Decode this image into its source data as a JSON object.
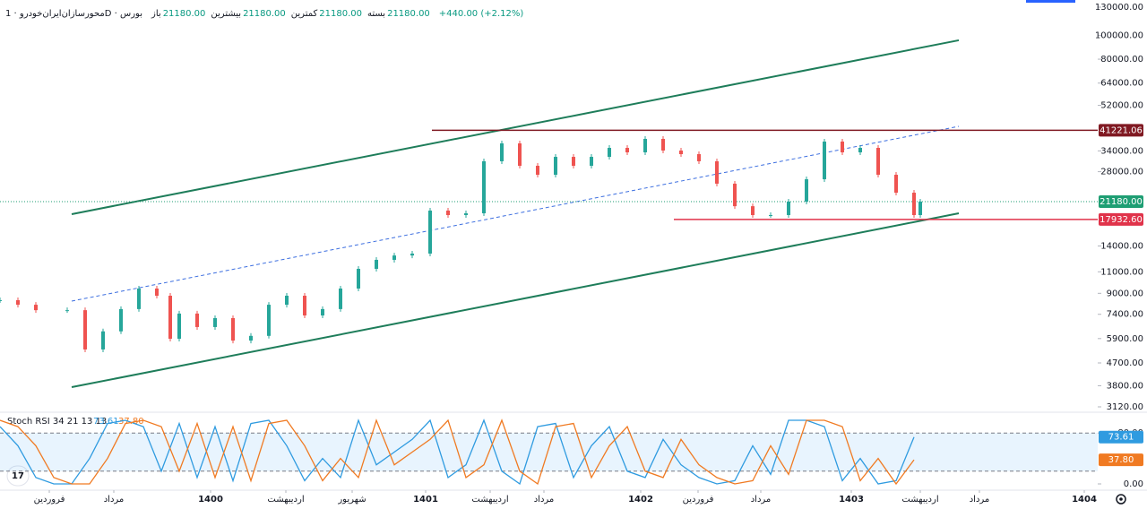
{
  "chart_data": [
    {
      "type": "candlestick",
      "title": "محورسازان‌ایران‌خودرو · 1D · بورس",
      "ohlc": [
        {
          "label": "باز",
          "text": "21180.00"
        },
        {
          "label": "بیشترین",
          "text": "21180.00"
        },
        {
          "label": "کمترین",
          "text": "21180.00"
        },
        {
          "label": "بسته",
          "text": "21180.00"
        }
      ],
      "change": "+440.00 (+2.12%)",
      "log_scale": true,
      "xlim": [
        -2.75,
        58.5
      ],
      "ylim": [
        3120,
        130000
      ],
      "yticks": [
        {
          "value": 130000,
          "label": "130000.00"
        },
        {
          "value": 100000,
          "label": "100000.00"
        },
        {
          "value": 80000,
          "label": "80000.00"
        },
        {
          "value": 64000,
          "label": "64000.00"
        },
        {
          "value": 52000,
          "label": "52000.00"
        },
        {
          "value": 34000,
          "label": "34000.00"
        },
        {
          "value": 28000,
          "label": "28000.00"
        },
        {
          "value": 14000,
          "label": "14000.00"
        },
        {
          "value": 11000,
          "label": "11000.00"
        },
        {
          "value": 9000,
          "label": "9000.00"
        },
        {
          "value": 7400,
          "label": "7400.00"
        },
        {
          "value": 5900,
          "label": "5900.00"
        },
        {
          "value": 4700,
          "label": "4700.00"
        },
        {
          "value": 3800,
          "label": "3800.00"
        },
        {
          "value": 3120,
          "label": "3120.00"
        }
      ],
      "up_color": "#26a69a",
      "down_color": "#ef5350",
      "x": [
        -2.75,
        -1.75,
        -0.75,
        1,
        2,
        3,
        4,
        5,
        6,
        6.75,
        7.25,
        8.25,
        9.25,
        10.25,
        11.25,
        12.25,
        13.25,
        14.25,
        15.25,
        16.25,
        17.25,
        18.25,
        19.25,
        20.25,
        21.25,
        22.25,
        23.25,
        24.25,
        25.25,
        26.25,
        27.25,
        28.25,
        29.25,
        30.25,
        31.25,
        32.25,
        33.25,
        34.25,
        35.25,
        36.25,
        37.25,
        38.25,
        39.25,
        40.25,
        41.25,
        42.25,
        43.25,
        44.25,
        45.25,
        46.25,
        47.25,
        48.25,
        48.6
      ],
      "values": [
        8440,
        8090,
        7690,
        7690,
        5330,
        6310,
        7770,
        9410,
        8800,
        5890,
        7450,
        6570,
        7140,
        5790,
        6050,
        8090,
        8800,
        7320,
        7770,
        9410,
        11310,
        12300,
        12810,
        13040,
        19480,
        18680,
        18990,
        30860,
        36470,
        29590,
        27210,
        32160,
        29590,
        32160,
        34970,
        33540,
        38030,
        34110,
        32980,
        30860,
        25040,
        20290,
        18680,
        18680,
        21180,
        26090,
        37090,
        33540,
        34970,
        27210,
        23020,
        18680,
        21180
      ],
      "trendlines": [
        {
          "x": [
            1.25,
            50.75
          ],
          "values": [
            18840,
            95440
          ],
          "color": "#1e7d5a",
          "dashed": false
        },
        {
          "x": [
            1.25,
            50.75
          ],
          "values": [
            3750,
            18990
          ],
          "color": "#1e7d5a",
          "dashed": false
        },
        {
          "x": [
            1.25,
            50.75
          ],
          "values": [
            8370,
            42750
          ],
          "color": "#3d6fe0",
          "dashed": true
        }
      ],
      "levels": [
        {
          "value": 41221.06,
          "value_label": "41221.06",
          "from": 21.35,
          "color": "#801922",
          "dotted": false
        },
        {
          "value": 21180,
          "value_label": "21180.00",
          "from": -2.75,
          "color": "#1e9e73",
          "dotted": true
        },
        {
          "value": 17932.6,
          "value_label": "17932.60",
          "from": 34.85,
          "color": "#e0334a",
          "dotted": false
        }
      ]
    },
    {
      "type": "line",
      "title": "Stoch RSI 34 21 13 13",
      "xlim": [
        -2.75,
        58.5
      ],
      "ylim": [
        0,
        100
      ],
      "band": [
        20,
        80
      ],
      "yticks": [
        {
          "value": 0,
          "label": "0.00"
        },
        {
          "value": 80,
          "label": "80.00"
        }
      ],
      "xticks": [
        {
          "value": 0,
          "label": "فروردین"
        },
        {
          "value": 3.6,
          "label": "مرداد"
        },
        {
          "value": 9,
          "label": "1400"
        },
        {
          "value": 13.2,
          "label": "اردیبهشت"
        },
        {
          "value": 16.9,
          "label": "شهریور"
        },
        {
          "value": 21,
          "label": "1401"
        },
        {
          "value": 24.6,
          "label": "اردیبهشت"
        },
        {
          "value": 27.6,
          "label": "مرداد"
        },
        {
          "value": 33,
          "label": "1402"
        },
        {
          "value": 36.2,
          "label": "فروردین"
        },
        {
          "value": 39.7,
          "label": "مرداد"
        },
        {
          "value": 44.75,
          "label": "1403"
        },
        {
          "value": 48.6,
          "label": "اردیبهشت"
        },
        {
          "value": 51.9,
          "label": "مرداد"
        },
        {
          "value": 57.75,
          "label": "1404"
        }
      ],
      "x": [
        -2.75,
        -1.75,
        -0.75,
        0.25,
        1.25,
        2.25,
        3.25,
        4.25,
        5.25,
        6.25,
        7.25,
        8.25,
        9.25,
        10.25,
        11.25,
        12.25,
        13.25,
        14.25,
        15.25,
        16.25,
        17.25,
        18.25,
        19.25,
        20.25,
        21.25,
        22.25,
        23.25,
        24.25,
        25.25,
        26.25,
        27.25,
        28.25,
        29.25,
        30.25,
        31.25,
        32.25,
        33.25,
        34.25,
        35.25,
        36.25,
        37.25,
        38.25,
        39.25,
        40.25,
        41.25,
        42.25,
        43.25,
        44.25,
        45.25,
        46.25,
        47.25,
        48.25
      ],
      "series": [
        {
          "color": "#2f9be0",
          "last_label": "73.61",
          "values": [
            90,
            60,
            10,
            0,
            0,
            40,
            95,
            100,
            90,
            20,
            95,
            10,
            90,
            5,
            95,
            100,
            60,
            5,
            40,
            10,
            100,
            30,
            50,
            70,
            100,
            10,
            30,
            100,
            20,
            0,
            90,
            95,
            10,
            60,
            90,
            20,
            10,
            70,
            30,
            10,
            0,
            5,
            60,
            15,
            100,
            100,
            90,
            5,
            40,
            0,
            5,
            73.61
          ]
        },
        {
          "color": "#f07a22",
          "last_label": "37.80",
          "values": [
            100,
            90,
            60,
            10,
            0,
            0,
            40,
            95,
            100,
            90,
            20,
            95,
            10,
            90,
            5,
            95,
            100,
            60,
            5,
            40,
            10,
            100,
            30,
            50,
            70,
            100,
            10,
            30,
            100,
            20,
            0,
            90,
            95,
            10,
            60,
            90,
            20,
            10,
            70,
            30,
            10,
            0,
            5,
            60,
            15,
            100,
            100,
            90,
            5,
            40,
            0,
            37.8
          ]
        }
      ]
    }
  ]
}
